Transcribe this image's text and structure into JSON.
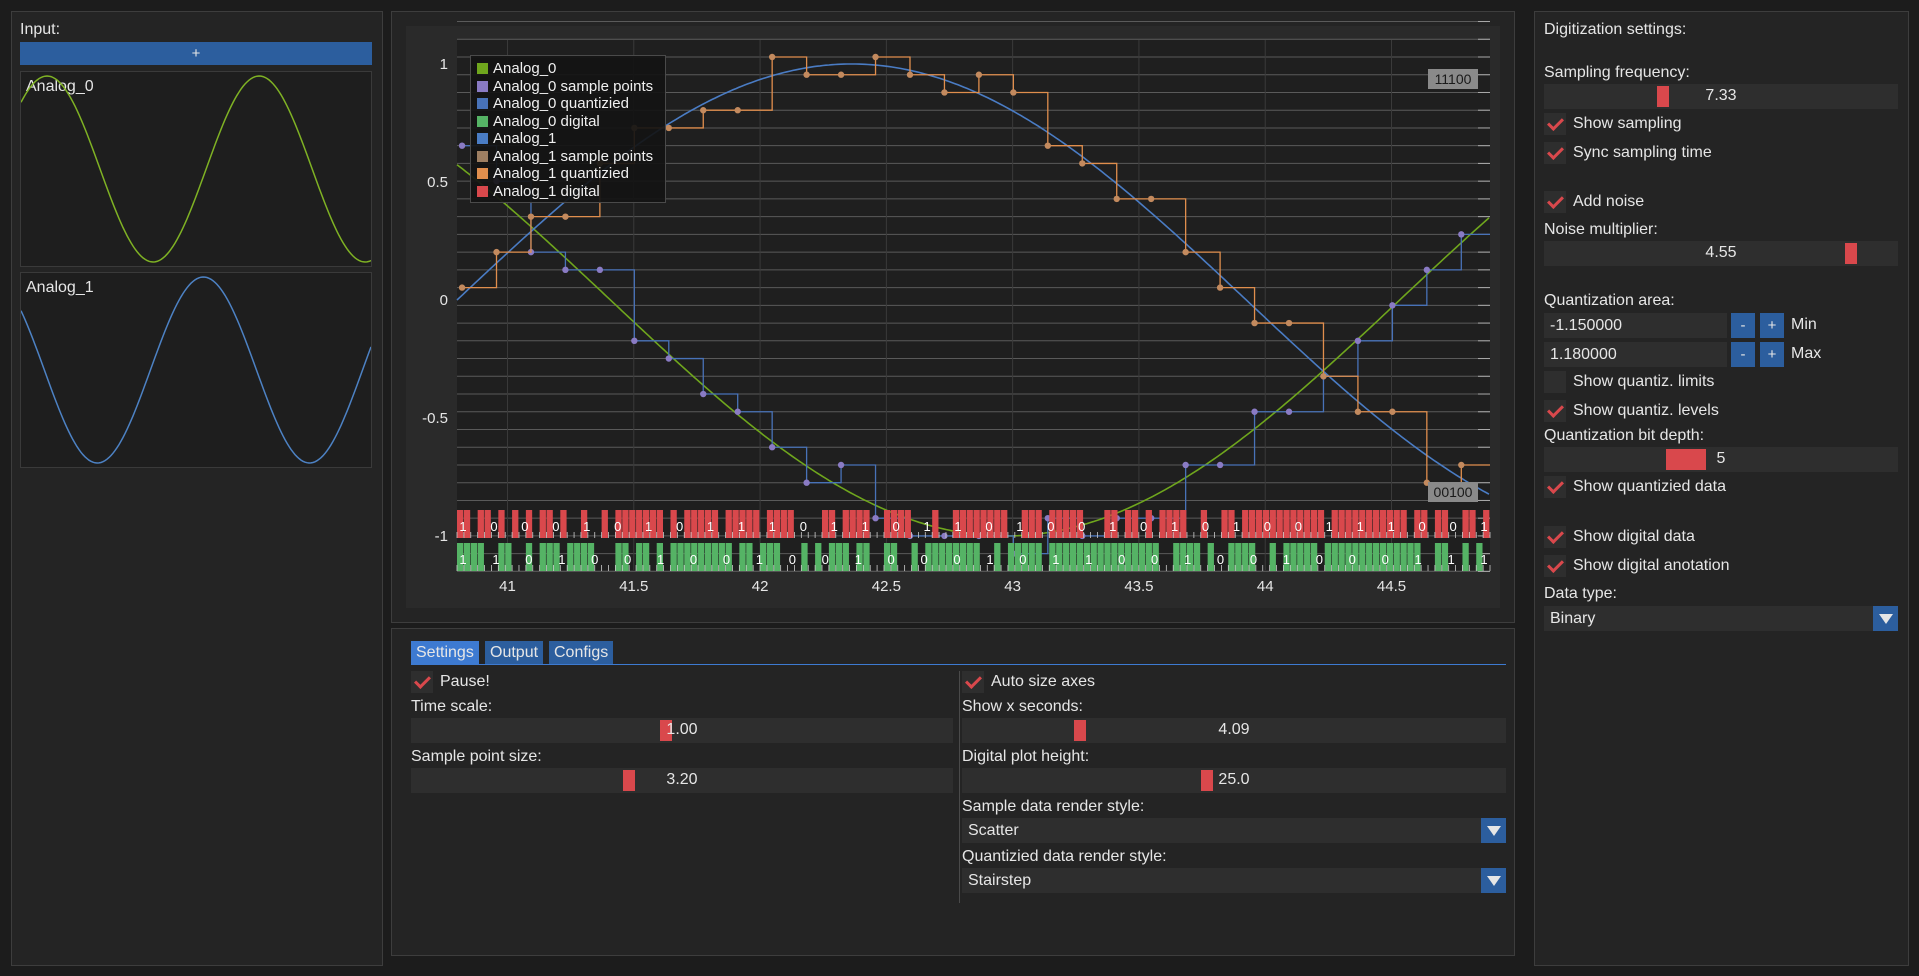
{
  "input_panel": {
    "title": "Input:",
    "add_button": "+",
    "signals": [
      {
        "name": "Analog_0",
        "color": "#7fb224"
      },
      {
        "name": "Analog_1",
        "color": "#4d82c4"
      }
    ]
  },
  "plot": {
    "y_ticks": [
      "1",
      "0.5",
      "0",
      "-0.5",
      "-1"
    ],
    "x_ticks": [
      "41",
      "41.5",
      "42",
      "42.5",
      "43",
      "43.5",
      "44",
      "44.5"
    ],
    "x_min": 40.8,
    "x_max": 44.89,
    "y_min": -1.15,
    "y_max": 1.18,
    "legend": [
      {
        "label": "Analog_0",
        "color": "#6fa61d"
      },
      {
        "label": "Analog_0 sample points",
        "color": "#8a7bc4"
      },
      {
        "label": "Analog_0 quantizied",
        "color": "#4872b8"
      },
      {
        "label": "Analog_0 digital",
        "color": "#55b365"
      },
      {
        "label": "Analog_1",
        "color": "#4a7cc4"
      },
      {
        "label": "Analog_1 sample points",
        "color": "#9e7f62"
      },
      {
        "label": "Analog_1 quantizied",
        "color": "#e08e4d"
      },
      {
        "label": "Analog_1 digital",
        "color": "#d9484c"
      }
    ],
    "tag_top": "11100",
    "tag_bottom": "00100",
    "digital_row_top_bits": [
      "1",
      "0",
      "0",
      "0",
      "1",
      "0",
      "1",
      "0",
      "1",
      "1",
      "1",
      "0",
      "1",
      "1",
      "0",
      "1",
      "1",
      "0",
      "1",
      "0",
      "0",
      "1",
      "0",
      "1",
      "0",
      "1",
      "0",
      "0",
      "1",
      "1",
      "1",
      "0",
      "0",
      "1"
    ],
    "digital_row_bottom_bits": [
      "1",
      "1",
      "0",
      "1",
      "0",
      "0",
      "1",
      "0",
      "0",
      "1",
      "0",
      "0",
      "1",
      "0",
      "0",
      "0",
      "1",
      "0",
      "1",
      "1",
      "0",
      "0",
      "1",
      "0",
      "0",
      "1",
      "0",
      "0",
      "0",
      "1",
      "1",
      "1"
    ]
  },
  "tabs": [
    "Settings",
    "Output",
    "Configs"
  ],
  "settings": {
    "pause_label": "Pause!",
    "pause_checked": true,
    "time_scale_label": "Time scale:",
    "time_scale_value": "1.00",
    "time_scale_fraction": 0.47,
    "sample_point_size_label": "Sample point size:",
    "sample_point_size_value": "3.20",
    "sample_point_size_fraction": 0.4,
    "auto_size_label": "Auto size axes",
    "auto_size_checked": true,
    "show_x_seconds_label": "Show x seconds:",
    "show_x_seconds_value": "4.09",
    "show_x_seconds_fraction": 0.21,
    "digital_plot_height_label": "Digital plot height:",
    "digital_plot_height_value": "25.0",
    "digital_plot_height_fraction": 0.45,
    "sample_render_label": "Sample data render style:",
    "sample_render_value": "Scatter",
    "quant_render_label": "Quantizied data render style:",
    "quant_render_value": "Stairstep"
  },
  "digitization": {
    "title": "Digitization settings:",
    "sampling_frequency_label": "Sampling frequency:",
    "sampling_frequency_value": "7.33",
    "sampling_frequency_fraction": 0.33,
    "show_sampling_label": "Show sampling",
    "sync_sampling_label": "Sync sampling time",
    "add_noise_label": "Add noise",
    "noise_multiplier_label": "Noise multiplier:",
    "noise_multiplier_value": "4.55",
    "noise_multiplier_fraction": 0.88,
    "quant_area_label": "Quantization area:",
    "quant_min_value": "-1.150000",
    "quant_max_value": "1.180000",
    "minus_label": "-",
    "plus_label": "+",
    "min_label": "Min",
    "max_label": "Max",
    "show_limits_label": "Show quantiz. limits",
    "show_levels_label": "Show quantiz. levels",
    "bit_depth_label": "Quantization bit depth:",
    "bit_depth_value": "5",
    "bit_depth_fraction": 0.39,
    "show_quantized_label": "Show quantizied data",
    "show_digital_label": "Show digital data",
    "show_digital_annotation_label": "Show digital anotation",
    "data_type_label": "Data type:",
    "data_type_value": "Binary",
    "checks": {
      "show_sampling": true,
      "sync_sampling": true,
      "add_noise": true,
      "show_limits": false,
      "show_levels": true,
      "show_quantized": true,
      "show_digital": true,
      "show_annotation": true
    }
  }
}
